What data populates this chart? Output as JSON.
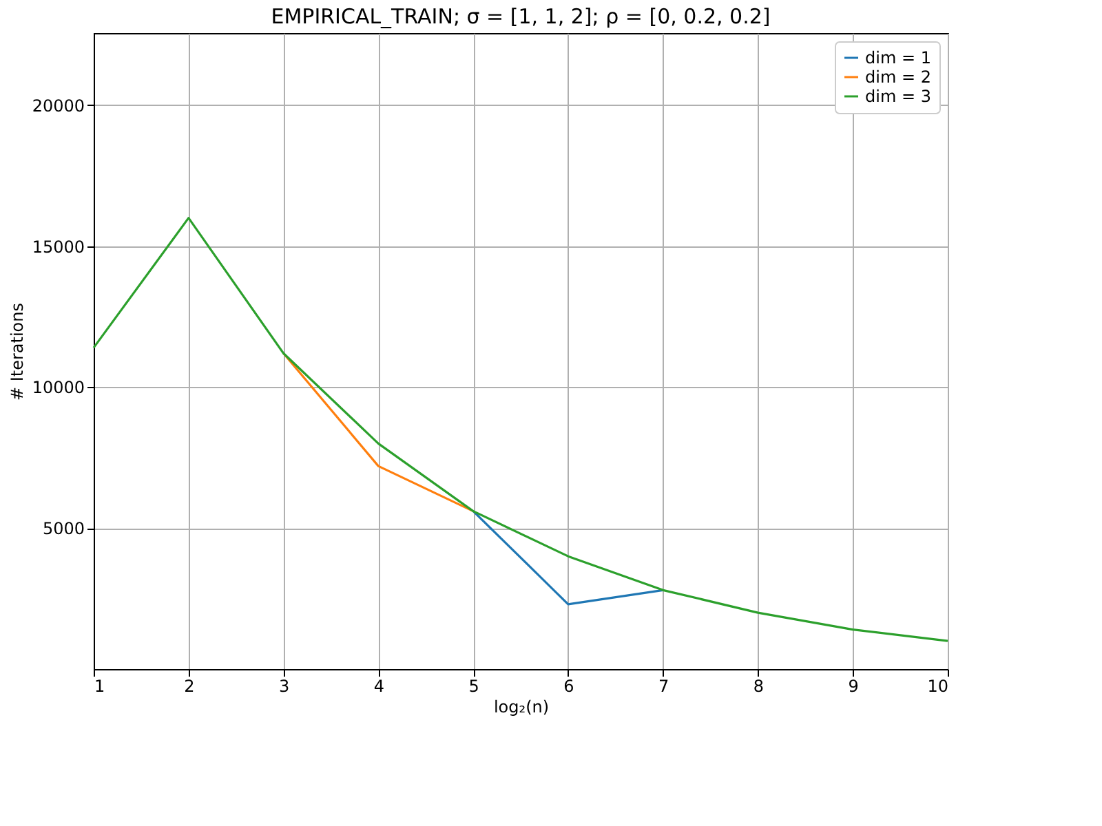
{
  "chart_data": {
    "type": "line",
    "title": "EMPIRICAL_TRAIN;  σ = [1, 1, 2];  ρ = [0, 0.2, 0.2]",
    "xlabel": "log₂(n)",
    "ylabel": "# Iterations",
    "x": [
      1,
      2,
      3,
      4,
      5,
      6,
      7,
      8,
      9,
      10
    ],
    "series": [
      {
        "name": "dim = 1",
        "color": "#1f77b4",
        "values": [
          null,
          null,
          null,
          null,
          5600,
          2300,
          2800,
          null,
          null,
          null
        ]
      },
      {
        "name": "dim = 2",
        "color": "#ff7f0e",
        "values": [
          null,
          null,
          11200,
          7200,
          5600,
          null,
          null,
          null,
          null,
          null
        ]
      },
      {
        "name": "dim = 3",
        "color": "#2ca02c",
        "values": [
          11400,
          16000,
          11200,
          8000,
          5600,
          4000,
          2800,
          2000,
          1400,
          1000
        ]
      }
    ],
    "xlim": [
      1,
      10
    ],
    "xticks": [
      1,
      2,
      3,
      4,
      5,
      6,
      7,
      8,
      9,
      10
    ],
    "ylim": [
      0,
      22560
    ],
    "yticks": [
      5000,
      10000,
      15000,
      20000
    ],
    "grid": true,
    "legend": "top right",
    "line_style": "solid",
    "marker": "none"
  }
}
